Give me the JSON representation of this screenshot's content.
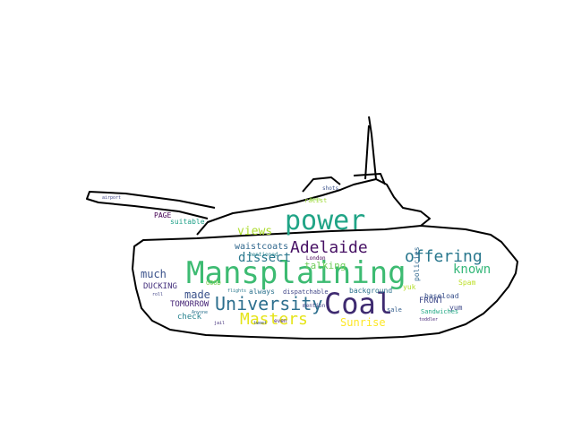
{
  "wordcloud": {
    "words": [
      {
        "text": "Mansplaining",
        "color": "#3dbb72"
      },
      {
        "text": "Coal",
        "color": "#3e2a70"
      },
      {
        "text": "power",
        "color": "#20a486"
      },
      {
        "text": "University",
        "color": "#2d6f8e"
      },
      {
        "text": "Adelaide",
        "color": "#471164"
      },
      {
        "text": "Masters",
        "color": "#e5e419"
      },
      {
        "text": "offering",
        "color": "#2a788e"
      },
      {
        "text": "known",
        "color": "#35b779"
      },
      {
        "text": "dissect",
        "color": "#2a788e"
      },
      {
        "text": "views",
        "color": "#addc30"
      },
      {
        "text": "talking",
        "color": "#6ece58"
      },
      {
        "text": "much",
        "color": "#3b528b"
      },
      {
        "text": "made",
        "color": "#3b528b"
      },
      {
        "text": "Sunrise",
        "color": "#fde725"
      },
      {
        "text": "waistcoats",
        "color": "#31688e"
      },
      {
        "text": "TOMORROW",
        "color": "#482878"
      },
      {
        "text": "DUCKING",
        "color": "#46327e"
      },
      {
        "text": "FRONT",
        "color": "#3e4989"
      },
      {
        "text": "check",
        "color": "#26828e"
      },
      {
        "text": "always",
        "color": "#2c728e"
      },
      {
        "text": "PAGE",
        "color": "#440154"
      },
      {
        "text": "GOOD",
        "color": "#7ad151"
      },
      {
        "text": "suitable",
        "color": "#1fa088"
      },
      {
        "text": "policies",
        "color": "#31688e"
      },
      {
        "text": "baseload",
        "color": "#3b528b"
      },
      {
        "text": "Sandwiches",
        "color": "#22a884"
      },
      {
        "text": "yum",
        "color": "#3e4989"
      },
      {
        "text": "Spam",
        "color": "#bddf26"
      },
      {
        "text": "background",
        "color": "#2c728e"
      },
      {
        "text": "dispatchable",
        "color": "#404688"
      },
      {
        "text": "London",
        "color": "#440154"
      },
      {
        "text": "mention",
        "color": "#414487"
      },
      {
        "text": "sale",
        "color": "#355f8d"
      },
      {
        "text": "mentioned",
        "color": "#26828e"
      },
      {
        "text": "flights",
        "color": "#2a788e"
      },
      {
        "text": "racist",
        "color": "#a0da39"
      },
      {
        "text": "even",
        "color": "#482475"
      },
      {
        "text": "yuk",
        "color": "#b5de2b"
      },
      {
        "text": "shots",
        "color": "#3b528b"
      },
      {
        "text": "Bees",
        "color": "#8fd744"
      },
      {
        "text": "roll",
        "color": "#414487"
      },
      {
        "text": "jail",
        "color": "#46337e"
      },
      {
        "text": "Anyone",
        "color": "#2c728e"
      },
      {
        "text": "airport",
        "color": "#404688"
      },
      {
        "text": "toddler",
        "color": "#482878"
      },
      {
        "text": "tweet",
        "color": "#3b528b"
      }
    ]
  }
}
